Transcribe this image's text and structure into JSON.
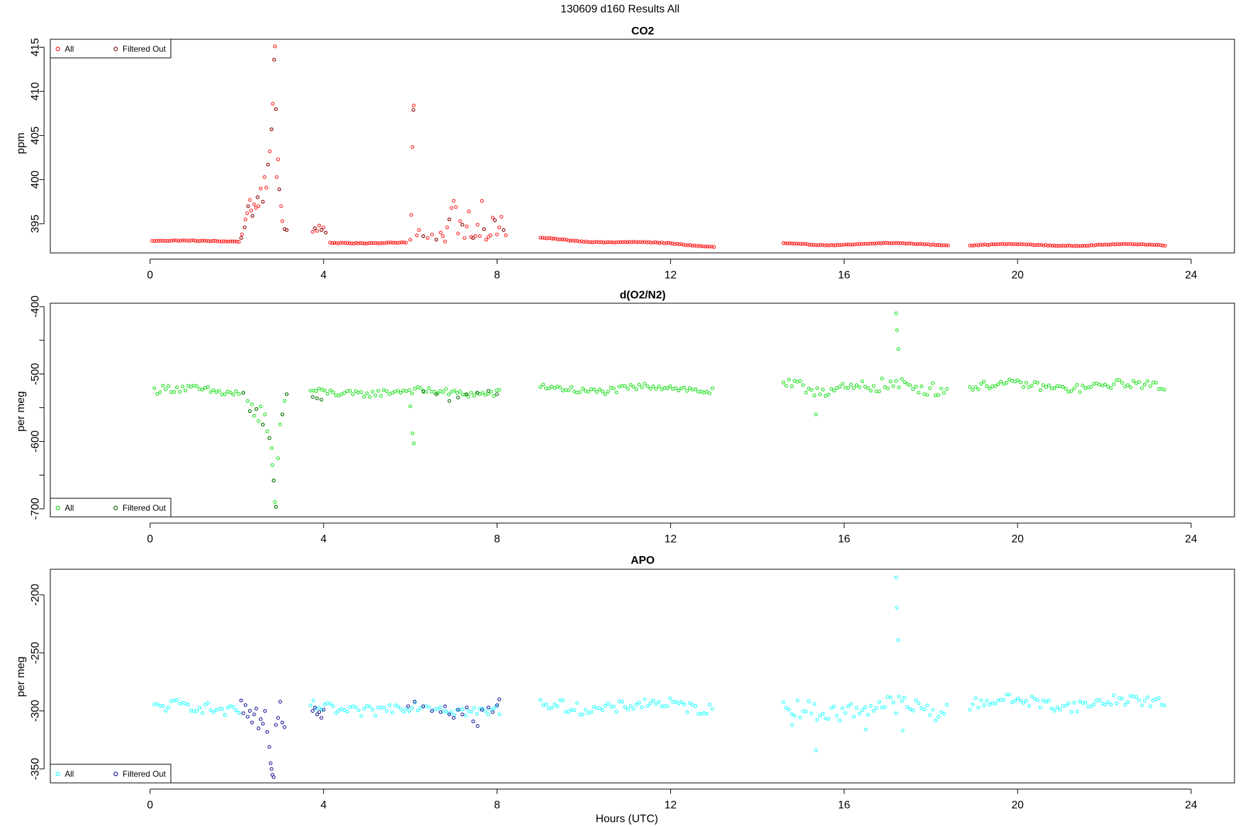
{
  "suptitle": "130609   d160   Results All",
  "xlabel": "Hours (UTC)",
  "chart_data": [
    {
      "type": "scatter",
      "title": "CO2",
      "ylabel": "ppm",
      "xlim": [
        -2.3,
        25
      ],
      "ylim": [
        391.7,
        415.9
      ],
      "xticks": [
        0,
        4,
        8,
        12,
        16,
        20,
        24
      ],
      "yticks": [
        395,
        400,
        405,
        410,
        415
      ],
      "legend_loc": "top-left",
      "series": [
        {
          "name": "All",
          "color": "#ff2020",
          "segments": [
            {
              "x0": 0.05,
              "x1": 2.05,
              "step": 0.05,
              "base": 393.05,
              "amp": 0.05,
              "noise": 0.05
            },
            {
              "x0": 4.15,
              "x1": 5.9,
              "step": 0.05,
              "base": 392.85,
              "amp": 0.05,
              "noise": 0.04
            },
            {
              "x0": 9.0,
              "x1": 13.0,
              "step": 0.05,
              "base": 393.2,
              "amp": 0.12,
              "noise": 0.05,
              "trend": [
                393.3,
                392.5
              ]
            },
            {
              "x0": 14.6,
              "x1": 18.4,
              "step": 0.05,
              "base": 392.7,
              "amp": 0.12,
              "noise": 0.04
            },
            {
              "x0": 18.9,
              "x1": 23.4,
              "step": 0.05,
              "base": 392.6,
              "amp": 0.1,
              "noise": 0.04
            }
          ],
          "points": [
            [
              2.1,
              393.4
            ],
            [
              2.12,
              393.8
            ],
            [
              2.18,
              394.6
            ],
            [
              2.2,
              395.5
            ],
            [
              2.24,
              396.2
            ],
            [
              2.26,
              397.0
            ],
            [
              2.3,
              397.7
            ],
            [
              2.33,
              396.5
            ],
            [
              2.36,
              395.9
            ],
            [
              2.4,
              397.2
            ],
            [
              2.44,
              396.8
            ],
            [
              2.48,
              398.0
            ],
            [
              2.5,
              397.0
            ],
            [
              2.55,
              399.0
            ],
            [
              2.6,
              397.5
            ],
            [
              2.64,
              400.3
            ],
            [
              2.68,
              399.1
            ],
            [
              2.72,
              401.7
            ],
            [
              2.76,
              403.2
            ],
            [
              2.8,
              405.7
            ],
            [
              2.83,
              408.6
            ],
            [
              2.86,
              413.6
            ],
            [
              2.88,
              415.1
            ],
            [
              2.9,
              408.0
            ],
            [
              2.92,
              400.3
            ],
            [
              2.95,
              402.3
            ],
            [
              2.98,
              398.9
            ],
            [
              3.02,
              397.0
            ],
            [
              3.05,
              395.3
            ],
            [
              3.1,
              394.4
            ],
            [
              3.15,
              394.3
            ],
            [
              3.75,
              394.1
            ],
            [
              3.8,
              394.5
            ],
            [
              3.85,
              394.2
            ],
            [
              3.9,
              394.8
            ],
            [
              3.95,
              394.3
            ],
            [
              4.0,
              394.6
            ],
            [
              4.05,
              394.0
            ],
            [
              6.0,
              393.2
            ],
            [
              6.02,
              396.0
            ],
            [
              6.05,
              403.7
            ],
            [
              6.07,
              407.9
            ],
            [
              6.08,
              408.4
            ],
            [
              6.15,
              393.7
            ],
            [
              6.2,
              394.3
            ],
            [
              6.3,
              393.6
            ],
            [
              6.4,
              393.4
            ],
            [
              6.5,
              393.8
            ],
            [
              6.6,
              393.2
            ],
            [
              6.7,
              394.0
            ],
            [
              6.75,
              393.6
            ],
            [
              6.8,
              393.0
            ],
            [
              6.85,
              394.6
            ],
            [
              6.9,
              395.5
            ],
            [
              6.95,
              396.8
            ],
            [
              7.0,
              397.6
            ],
            [
              7.05,
              396.9
            ],
            [
              7.1,
              393.9
            ],
            [
              7.15,
              395.3
            ],
            [
              7.2,
              394.9
            ],
            [
              7.25,
              393.4
            ],
            [
              7.3,
              394.7
            ],
            [
              7.35,
              396.4
            ],
            [
              7.4,
              393.5
            ],
            [
              7.45,
              393.4
            ],
            [
              7.5,
              393.6
            ],
            [
              7.55,
              394.9
            ],
            [
              7.6,
              393.6
            ],
            [
              7.65,
              397.6
            ],
            [
              7.7,
              394.4
            ],
            [
              7.75,
              393.2
            ],
            [
              7.8,
              393.5
            ],
            [
              7.85,
              393.7
            ],
            [
              7.9,
              395.7
            ],
            [
              7.95,
              395.4
            ],
            [
              8.0,
              393.8
            ],
            [
              8.05,
              394.6
            ],
            [
              8.1,
              395.8
            ],
            [
              8.15,
              394.3
            ],
            [
              8.2,
              393.7
            ]
          ]
        },
        {
          "name": "Filtered Out",
          "color": "#8b1a1a",
          "points": [
            [
              2.1,
              393.4
            ],
            [
              2.18,
              394.6
            ],
            [
              2.26,
              397.0
            ],
            [
              2.36,
              395.9
            ],
            [
              2.48,
              398.0
            ],
            [
              2.6,
              397.5
            ],
            [
              2.72,
              401.7
            ],
            [
              2.8,
              405.7
            ],
            [
              2.86,
              413.6
            ],
            [
              2.9,
              408.0
            ],
            [
              2.98,
              398.9
            ],
            [
              3.1,
              394.4
            ],
            [
              3.15,
              394.3
            ],
            [
              3.8,
              394.5
            ],
            [
              3.95,
              394.3
            ],
            [
              4.05,
              394.0
            ],
            [
              6.07,
              407.9
            ],
            [
              6.3,
              393.6
            ],
            [
              6.6,
              393.2
            ],
            [
              6.9,
              395.5
            ],
            [
              7.2,
              394.9
            ],
            [
              7.45,
              393.4
            ],
            [
              7.7,
              394.4
            ],
            [
              7.95,
              395.4
            ],
            [
              8.15,
              394.3
            ]
          ]
        }
      ]
    },
    {
      "type": "scatter",
      "title": "d(O2/N2)",
      "ylabel": "per meg",
      "xlim": [
        -2.3,
        25
      ],
      "ylim": [
        -712,
        -395
      ],
      "xticks": [
        0,
        4,
        8,
        12,
        16,
        20,
        24
      ],
      "yticks": [
        -400,
        -500,
        -600,
        -700
      ],
      "minor_yticks": [
        -450,
        -550,
        -650
      ],
      "legend_loc": "bottom-left",
      "series": [
        {
          "name": "All",
          "color": "#1ee01e",
          "segments": [
            {
              "x0": 0.1,
              "x1": 2.1,
              "step": 0.065,
              "base": -525,
              "amp": 4,
              "noise": 6
            },
            {
              "x0": 3.7,
              "x1": 8.1,
              "step": 0.065,
              "base": -527,
              "amp": 3,
              "noise": 5
            },
            {
              "x0": 9.0,
              "x1": 13.0,
              "step": 0.065,
              "base": -522,
              "amp": 4,
              "noise": 5
            },
            {
              "x0": 14.6,
              "x1": 18.4,
              "step": 0.065,
              "base": -520,
              "amp": 4,
              "noise": 10
            },
            {
              "x0": 18.9,
              "x1": 23.4,
              "step": 0.065,
              "base": -518,
              "amp": 4,
              "noise": 6
            }
          ],
          "points": [
            [
              2.15,
              -528
            ],
            [
              2.25,
              -540
            ],
            [
              2.3,
              -555
            ],
            [
              2.35,
              -545
            ],
            [
              2.4,
              -562
            ],
            [
              2.45,
              -552
            ],
            [
              2.5,
              -570
            ],
            [
              2.55,
              -548
            ],
            [
              2.6,
              -575
            ],
            [
              2.65,
              -560
            ],
            [
              2.7,
              -585
            ],
            [
              2.75,
              -595
            ],
            [
              2.8,
              -610
            ],
            [
              2.82,
              -635
            ],
            [
              2.85,
              -658
            ],
            [
              2.88,
              -690
            ],
            [
              2.9,
              -697
            ],
            [
              2.95,
              -625
            ],
            [
              3.0,
              -575
            ],
            [
              3.05,
              -560
            ],
            [
              3.1,
              -540
            ],
            [
              3.15,
              -530
            ],
            [
              6.0,
              -548
            ],
            [
              6.05,
              -588
            ],
            [
              6.08,
              -603
            ],
            [
              17.2,
              -410
            ],
            [
              17.22,
              -435
            ],
            [
              17.25,
              -463
            ],
            [
              15.35,
              -560
            ]
          ]
        },
        {
          "name": "Filtered Out",
          "color": "#0a6a0a",
          "points": [
            [
              2.15,
              -528
            ],
            [
              2.3,
              -555
            ],
            [
              2.45,
              -552
            ],
            [
              2.6,
              -575
            ],
            [
              2.75,
              -595
            ],
            [
              2.85,
              -658
            ],
            [
              2.9,
              -697
            ],
            [
              3.05,
              -560
            ],
            [
              3.15,
              -530
            ],
            [
              3.75,
              -534
            ],
            [
              3.85,
              -536
            ],
            [
              3.95,
              -538
            ],
            [
              6.3,
              -526
            ],
            [
              6.6,
              -530
            ],
            [
              6.9,
              -540
            ],
            [
              7.1,
              -535
            ],
            [
              7.3,
              -530
            ],
            [
              7.55,
              -528
            ],
            [
              7.8,
              -525
            ],
            [
              8.0,
              -530
            ]
          ]
        }
      ]
    },
    {
      "type": "scatter",
      "title": "APO",
      "ylabel": "per meg",
      "xlim": [
        -2.3,
        25
      ],
      "ylim": [
        -362,
        -178
      ],
      "xticks": [
        0,
        4,
        8,
        12,
        16,
        20,
        24
      ],
      "yticks": [
        -200,
        -250,
        -300,
        -350
      ],
      "legend_loc": "bottom-left",
      "series": [
        {
          "name": "All",
          "color": "#22ffff",
          "segments": [
            {
              "x0": 0.1,
              "x1": 2.1,
              "step": 0.065,
              "base": -298,
              "amp": 3,
              "noise": 5
            },
            {
              "x0": 3.7,
              "x1": 8.1,
              "step": 0.065,
              "base": -298,
              "amp": 3,
              "noise": 5
            },
            {
              "x0": 9.0,
              "x1": 13.0,
              "step": 0.065,
              "base": -296,
              "amp": 3,
              "noise": 5
            },
            {
              "x0": 14.6,
              "x1": 18.4,
              "step": 0.065,
              "base": -298,
              "amp": 4,
              "noise": 8
            },
            {
              "x0": 18.9,
              "x1": 23.4,
              "step": 0.065,
              "base": -293,
              "amp": 3,
              "noise": 5
            }
          ],
          "points": [
            [
              17.2,
              -185
            ],
            [
              17.22,
              -211
            ],
            [
              17.25,
              -239
            ],
            [
              15.35,
              -334
            ],
            [
              16.5,
              -316
            ],
            [
              17.35,
              -317
            ],
            [
              14.8,
              -312
            ]
          ]
        },
        {
          "name": "Filtered Out",
          "color": "#1c1c9a",
          "points": [
            [
              2.1,
              -291
            ],
            [
              2.15,
              -302
            ],
            [
              2.2,
              -295
            ],
            [
              2.25,
              -305
            ],
            [
              2.3,
              -300
            ],
            [
              2.35,
              -310
            ],
            [
              2.4,
              -303
            ],
            [
              2.45,
              -298
            ],
            [
              2.5,
              -315
            ],
            [
              2.55,
              -307
            ],
            [
              2.6,
              -311
            ],
            [
              2.65,
              -300
            ],
            [
              2.7,
              -318
            ],
            [
              2.75,
              -331
            ],
            [
              2.78,
              -345
            ],
            [
              2.8,
              -350
            ],
            [
              2.82,
              -355
            ],
            [
              2.85,
              -357
            ],
            [
              2.9,
              -312
            ],
            [
              2.95,
              -306
            ],
            [
              3.0,
              -292
            ],
            [
              3.05,
              -310
            ],
            [
              3.1,
              -314
            ],
            [
              3.75,
              -300
            ],
            [
              3.8,
              -297
            ],
            [
              3.85,
              -303
            ],
            [
              3.9,
              -301
            ],
            [
              3.95,
              -306
            ],
            [
              4.0,
              -299
            ],
            [
              5.95,
              -296
            ],
            [
              6.1,
              -292
            ],
            [
              6.3,
              -296
            ],
            [
              6.5,
              -300
            ],
            [
              6.7,
              -301
            ],
            [
              6.8,
              -296
            ],
            [
              6.9,
              -303
            ],
            [
              7.0,
              -306
            ],
            [
              7.1,
              -299
            ],
            [
              7.2,
              -303
            ],
            [
              7.3,
              -297
            ],
            [
              7.45,
              -309
            ],
            [
              7.55,
              -313
            ],
            [
              7.65,
              -299
            ],
            [
              7.8,
              -297
            ],
            [
              7.9,
              -301
            ],
            [
              8.0,
              -295
            ],
            [
              8.05,
              -290
            ]
          ]
        }
      ]
    }
  ]
}
